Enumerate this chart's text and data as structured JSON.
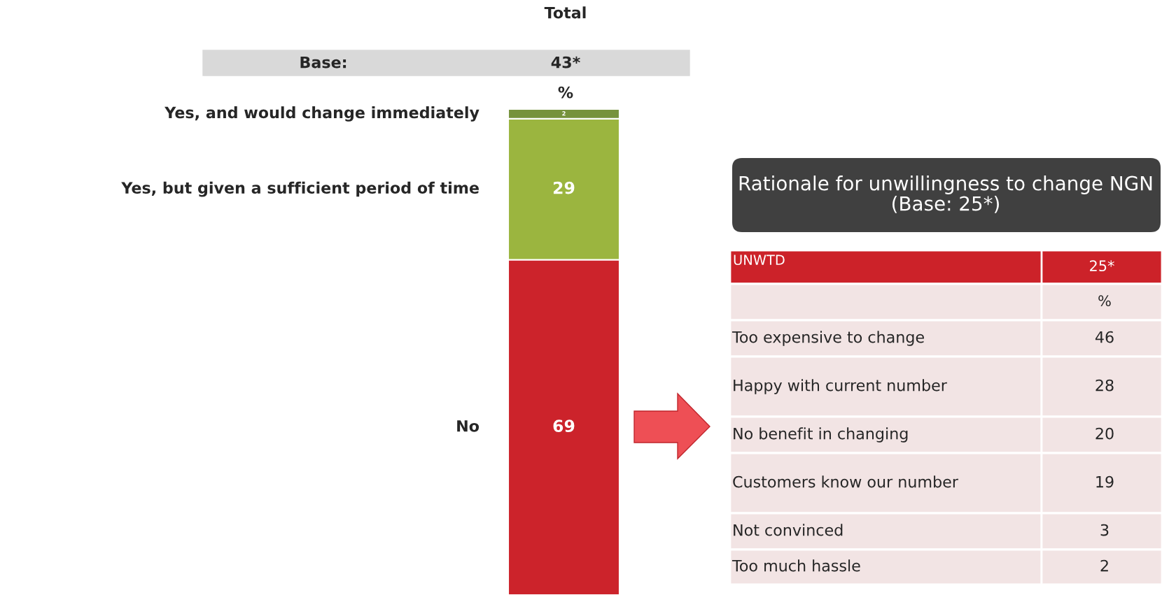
{
  "chart_data": [
    {
      "type": "bar",
      "stacked": true,
      "title": "Total",
      "categories": [
        null
      ],
      "series": [
        {
          "name": "No",
          "color": "#cc232b",
          "values": [
            69
          ]
        },
        {
          "name": "Yes, but given a sufficient period of time",
          "color": "#9bb53f",
          "values": [
            29
          ]
        },
        {
          "name": "Yes, and would change immediately",
          "color": "#76923c",
          "values": [
            2
          ]
        }
      ],
      "data_labels": true,
      "annotations": [
        "Base:",
        "43*",
        "%"
      ]
    },
    {
      "type": "other",
      "title": "Rationale for unwillingness to change NGN (Base: 25*)",
      "categories": [
        "Too expensive to change",
        "Happy with current number",
        "No benefit in changing",
        "Customers know our number",
        "Not convinced",
        "Too much hassle"
      ],
      "values": [
        46,
        28,
        20,
        19,
        3,
        2
      ],
      "data_labels": true,
      "annotations": [
        "UNWTD",
        "25*",
        "%"
      ]
    }
  ]
}
